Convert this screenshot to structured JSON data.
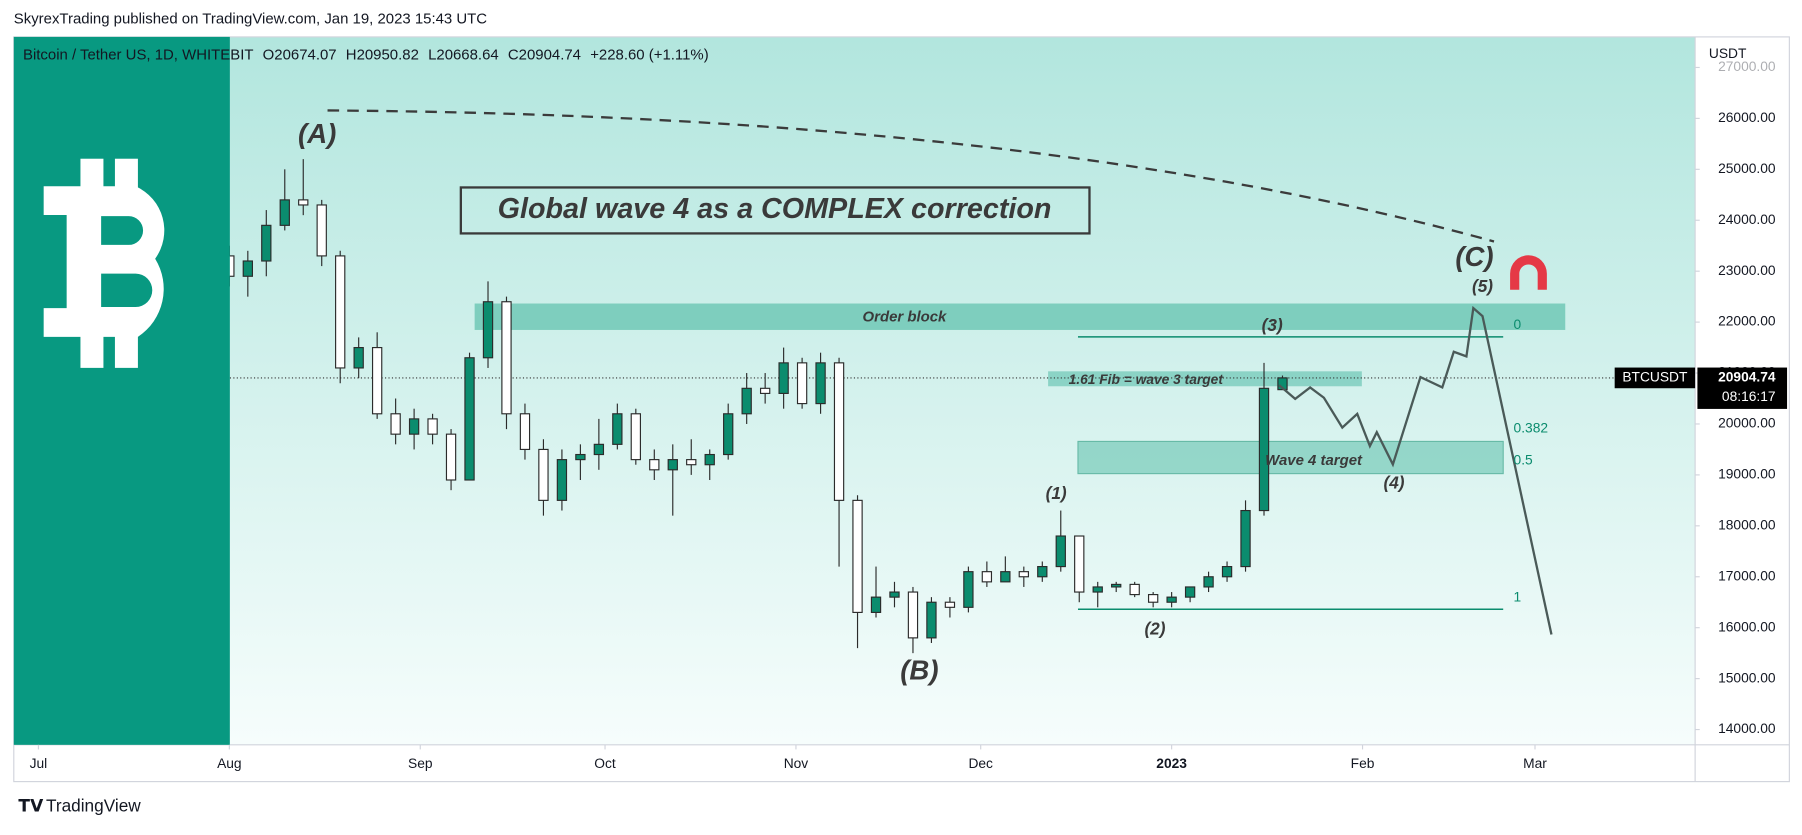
{
  "header": {
    "publisher": "SkyrexTrading published on TradingView.com, Jan 19, 2023 15:43 UTC"
  },
  "footer": {
    "brand": "TradingView"
  },
  "chart_data": {
    "type": "candlestick",
    "legend_fields": [
      "Bitcoin / Tether US, 1D, WHITEBIT",
      "O20674.07",
      "H20950.82",
      "L20668.64",
      "C20904.74",
      "+228.60 (+1.11%)"
    ],
    "currency": "USDT",
    "price_tag": {
      "symbol": "BTCUSDT",
      "countdown": "08:16:17"
    },
    "title": "Global wave 4 as a COMPLEX correction",
    "annotations": {
      "wave_a": "(A)",
      "wave_b": "(B)",
      "wave_c": "(C)",
      "wave_1": "(1)",
      "wave_2": "(2)",
      "wave_3": "(3)",
      "wave_4": "(4)",
      "wave_5": "(5)",
      "order_block": "Order block",
      "fib_target": "1.61 Fib = wave 3 target",
      "wave4_target": "Wave 4 target"
    },
    "fib_levels": [
      0,
      0.382,
      0.5,
      1
    ],
    "up_color": "#0b8c6e",
    "down_color": "#ffffff",
    "xlim": [
      -4,
      269
    ],
    "xticks": [
      {
        "value": 0,
        "label": "Jul"
      },
      {
        "value": 31,
        "label": "Aug"
      },
      {
        "value": 62,
        "label": "Sep"
      },
      {
        "value": 92,
        "label": "Oct"
      },
      {
        "value": 123,
        "label": "Nov"
      },
      {
        "value": 153,
        "label": "Dec"
      },
      {
        "value": 184,
        "label": "2023"
      },
      {
        "value": 215,
        "label": "Feb"
      },
      {
        "value": 243,
        "label": "Mar"
      }
    ],
    "ylim": [
      13700,
      27600
    ],
    "yticks": [
      {
        "value": 14000,
        "label": "14000.00"
      },
      {
        "value": 15000,
        "label": "15000.00"
      },
      {
        "value": 16000,
        "label": "16000.00"
      },
      {
        "value": 17000,
        "label": "17000.00"
      },
      {
        "value": 18000,
        "label": "18000.00"
      },
      {
        "value": 19000,
        "label": "19000.00"
      },
      {
        "value": 20000,
        "label": "20000.00"
      },
      {
        "value": 21000,
        "label": "21000.00"
      },
      {
        "value": 22000,
        "label": "22000.00"
      },
      {
        "value": 23000,
        "label": "23000.00"
      },
      {
        "value": 24000,
        "label": "24000.00"
      },
      {
        "value": 25000,
        "label": "25000.00"
      },
      {
        "value": 26000,
        "label": "26000.00"
      },
      {
        "value": 27000,
        "label": "27000.00"
      }
    ],
    "series": [
      {
        "name": "BTCUSDT",
        "x": [
          31,
          34,
          37,
          40,
          43,
          46,
          49,
          52,
          55,
          58,
          61,
          64,
          67,
          70,
          73,
          76,
          79,
          82,
          85,
          88,
          91,
          94,
          97,
          100,
          103,
          106,
          109,
          112,
          115,
          118,
          121,
          124,
          127,
          130,
          133,
          136,
          139,
          142,
          145,
          148,
          151,
          154,
          157,
          160,
          163,
          166,
          169,
          172,
          175,
          178,
          181,
          184,
          187,
          190,
          193,
          196,
          199,
          202
        ],
        "open": [
          23300,
          22900,
          23200,
          23900,
          24400,
          24300,
          23300,
          21100,
          21500,
          20200,
          19800,
          20100,
          19800,
          18900,
          21300,
          22400,
          20200,
          19500,
          18500,
          19300,
          19400,
          19600,
          20200,
          19300,
          19100,
          19300,
          19200,
          19400,
          20200,
          20700,
          20600,
          21200,
          20400,
          21200,
          18500,
          16300,
          16600,
          16700,
          15800,
          16500,
          16400,
          17100,
          16900,
          17100,
          17000,
          17200,
          17800,
          16700,
          16800,
          16850,
          16650,
          16500,
          16600,
          16800,
          17000,
          17200,
          18300,
          20674.07
        ],
        "high": [
          23500,
          23400,
          24200,
          25000,
          25200,
          24400,
          23400,
          21700,
          21800,
          20500,
          20300,
          20200,
          19900,
          21400,
          22800,
          22500,
          20400,
          19700,
          19500,
          19600,
          20100,
          20400,
          20300,
          19500,
          19600,
          19700,
          19500,
          20400,
          21000,
          21000,
          21500,
          21300,
          21400,
          21300,
          18600,
          17200,
          16900,
          16800,
          16600,
          16600,
          17200,
          17300,
          17400,
          17200,
          17300,
          18300,
          17800,
          16900,
          16900,
          16900,
          16700,
          16700,
          16800,
          17100,
          17300,
          18500,
          21200,
          20950.82
        ],
        "low": [
          22700,
          22500,
          22900,
          23800,
          24100,
          23100,
          20800,
          20900,
          20100,
          19600,
          19500,
          19600,
          18700,
          18900,
          21100,
          19900,
          19300,
          18200,
          18300,
          18900,
          19100,
          19500,
          19200,
          18900,
          18200,
          19000,
          18900,
          19300,
          20000,
          20400,
          20300,
          20300,
          20200,
          17200,
          15600,
          16200,
          16400,
          15500,
          15700,
          16200,
          16300,
          16800,
          16900,
          16800,
          16900,
          17100,
          16500,
          16400,
          16700,
          16600,
          16400,
          16400,
          16500,
          16700,
          16900,
          17100,
          18200,
          20668.64
        ],
        "close": [
          22900,
          23200,
          23900,
          24400,
          24300,
          23300,
          21100,
          21500,
          20200,
          19800,
          20100,
          19800,
          18900,
          21300,
          22400,
          20200,
          19500,
          18500,
          19300,
          19400,
          19600,
          20200,
          19300,
          19100,
          19300,
          19200,
          19400,
          20200,
          20700,
          20600,
          21200,
          20400,
          21200,
          18500,
          16300,
          16600,
          16700,
          15800,
          16500,
          16400,
          17100,
          16900,
          17100,
          17000,
          17200,
          17800,
          16700,
          16800,
          16850,
          16650,
          16500,
          16600,
          16800,
          17000,
          17200,
          18300,
          20700,
          20904.74
        ]
      }
    ]
  }
}
